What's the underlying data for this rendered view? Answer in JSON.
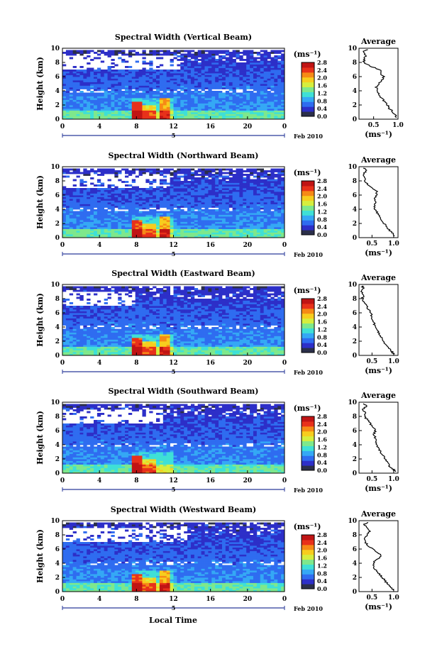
{
  "figure": {
    "xlabel_bottom": "Local Time",
    "colorbar_unit": "(ms⁻¹)",
    "date_label": "Feb 2010",
    "date_day": "5",
    "avg_title": "Average",
    "avg_xlabel": "(ms⁻¹)",
    "ylabel": "Height (km)"
  },
  "colors": {
    "colormap": [
      "#2b2f4a",
      "#2d2fc8",
      "#2f6cf0",
      "#35a8f5",
      "#3fe0d6",
      "#7ee88c",
      "#d6ee3e",
      "#f7cd1e",
      "#f68a16",
      "#e8311a",
      "#c01414"
    ]
  },
  "chart_data": [
    {
      "type": "heatmap",
      "title": "Spectral Width (Vertical Beam)",
      "xlim": [
        0,
        24
      ],
      "ylim": [
        0,
        10
      ],
      "xticks": [
        "0",
        "4",
        "8",
        "12",
        "16",
        "20",
        "0"
      ],
      "yticks": [
        "0",
        "2",
        "4",
        "6",
        "8",
        "10"
      ],
      "colorbar_ticks": [
        "0.0",
        "0.4",
        "0.8",
        "1.2",
        "1.6",
        "2.0",
        "2.4",
        "2.8"
      ],
      "clim": [
        0,
        2.8
      ],
      "avg": {
        "xticks": [
          "0.5",
          "1.0"
        ],
        "xlim": [
          0.2,
          1.0
        ],
        "profile": [
          [
            0.97,
            0.2
          ],
          [
            0.95,
            0.5
          ],
          [
            0.9,
            1.0
          ],
          [
            0.82,
            1.5
          ],
          [
            0.78,
            2.0
          ],
          [
            0.72,
            2.5
          ],
          [
            0.66,
            3.0
          ],
          [
            0.62,
            3.5
          ],
          [
            0.58,
            4.0
          ],
          [
            0.55,
            4.5
          ],
          [
            0.6,
            5.0
          ],
          [
            0.67,
            5.5
          ],
          [
            0.7,
            6.0
          ],
          [
            0.65,
            6.5
          ],
          [
            0.62,
            7.0
          ],
          [
            0.42,
            7.5
          ],
          [
            0.3,
            8.0
          ],
          [
            0.3,
            8.5
          ],
          [
            0.35,
            9.0
          ],
          [
            0.28,
            9.5
          ],
          [
            0.38,
            9.8
          ]
        ]
      }
    },
    {
      "type": "heatmap",
      "title": "Spectral Width (Northward Beam)",
      "xlim": [
        0,
        24
      ],
      "ylim": [
        0,
        10
      ],
      "xticks": [
        "0",
        "4",
        "8",
        "12",
        "16",
        "20",
        "0"
      ],
      "yticks": [
        "0",
        "2",
        "4",
        "6",
        "8",
        "10"
      ],
      "colorbar_ticks": [
        "0.0",
        "0.4",
        "0.8",
        "1.2",
        "1.6",
        "2.0",
        "2.4",
        "2.8"
      ],
      "clim": [
        0,
        2.8
      ],
      "avg": {
        "xticks": [
          "0.5",
          "1.0"
        ],
        "xlim": [
          0.2,
          1.1
        ],
        "profile": [
          [
            1.02,
            0.2
          ],
          [
            0.98,
            0.6
          ],
          [
            0.9,
            1.0
          ],
          [
            0.85,
            1.5
          ],
          [
            0.78,
            2.0
          ],
          [
            0.73,
            2.5
          ],
          [
            0.68,
            3.0
          ],
          [
            0.62,
            3.5
          ],
          [
            0.58,
            4.0
          ],
          [
            0.55,
            4.5
          ],
          [
            0.6,
            5.0
          ],
          [
            0.55,
            5.5
          ],
          [
            0.6,
            6.0
          ],
          [
            0.62,
            6.5
          ],
          [
            0.5,
            7.0
          ],
          [
            0.4,
            7.5
          ],
          [
            0.32,
            8.0
          ],
          [
            0.33,
            8.5
          ],
          [
            0.3,
            9.0
          ],
          [
            0.38,
            9.5
          ],
          [
            0.3,
            9.8
          ]
        ]
      }
    },
    {
      "type": "heatmap",
      "title": "Spectral Width (Eastward Beam)",
      "xlim": [
        0,
        24
      ],
      "ylim": [
        0,
        10
      ],
      "xticks": [
        "0",
        "4",
        "8",
        "12",
        "16",
        "20",
        "0"
      ],
      "yticks": [
        "0",
        "2",
        "4",
        "6",
        "8",
        "10"
      ],
      "colorbar_ticks": [
        "0.0",
        "0.4",
        "0.8",
        "1.2",
        "1.6",
        "2.0",
        "2.4",
        "2.8"
      ],
      "clim": [
        0,
        2.8
      ],
      "avg": {
        "xticks": [
          "0.5",
          "1.0"
        ],
        "xlim": [
          0.2,
          1.1
        ],
        "profile": [
          [
            1.0,
            0.2
          ],
          [
            0.95,
            0.6
          ],
          [
            0.88,
            1.0
          ],
          [
            0.82,
            1.5
          ],
          [
            0.78,
            2.0
          ],
          [
            0.72,
            2.5
          ],
          [
            0.68,
            3.0
          ],
          [
            0.62,
            3.5
          ],
          [
            0.58,
            4.0
          ],
          [
            0.55,
            4.5
          ],
          [
            0.52,
            5.0
          ],
          [
            0.5,
            5.5
          ],
          [
            0.46,
            6.0
          ],
          [
            0.42,
            6.5
          ],
          [
            0.38,
            7.0
          ],
          [
            0.33,
            7.5
          ],
          [
            0.28,
            8.0
          ],
          [
            0.3,
            8.5
          ],
          [
            0.26,
            9.0
          ],
          [
            0.3,
            9.5
          ],
          [
            0.27,
            9.8
          ]
        ]
      }
    },
    {
      "type": "heatmap",
      "title": "Spectral Width (Southward Beam)",
      "xlim": [
        0,
        24
      ],
      "ylim": [
        0,
        10
      ],
      "xticks": [
        "0",
        "4",
        "8",
        "12",
        "16",
        "20",
        "0"
      ],
      "yticks": [
        "0",
        "2",
        "4",
        "6",
        "8",
        "10"
      ],
      "colorbar_ticks": [
        "0.0",
        "0.4",
        "0.8",
        "1.2",
        "1.6",
        "2.0",
        "2.4",
        "2.8"
      ],
      "clim": [
        0,
        2.8
      ],
      "avg": {
        "xticks": [
          "0.5",
          "1.0"
        ],
        "xlim": [
          0.2,
          1.1
        ],
        "profile": [
          [
            1.05,
            0.2
          ],
          [
            0.98,
            0.6
          ],
          [
            0.9,
            1.0
          ],
          [
            0.85,
            1.5
          ],
          [
            0.8,
            2.0
          ],
          [
            0.75,
            2.5
          ],
          [
            0.7,
            3.0
          ],
          [
            0.65,
            3.5
          ],
          [
            0.62,
            4.0
          ],
          [
            0.6,
            4.5
          ],
          [
            0.57,
            5.0
          ],
          [
            0.54,
            5.5
          ],
          [
            0.58,
            6.0
          ],
          [
            0.52,
            6.5
          ],
          [
            0.46,
            7.0
          ],
          [
            0.4,
            7.5
          ],
          [
            0.32,
            8.0
          ],
          [
            0.35,
            8.5
          ],
          [
            0.3,
            9.0
          ],
          [
            0.38,
            9.5
          ],
          [
            0.3,
            9.8
          ]
        ]
      }
    },
    {
      "type": "heatmap",
      "title": "Spectral Width (Westward Beam)",
      "xlim": [
        0,
        24
      ],
      "ylim": [
        0,
        10
      ],
      "xticks": [
        "0",
        "4",
        "8",
        "12",
        "16",
        "20",
        "0"
      ],
      "yticks": [
        "0",
        "2",
        "4",
        "6",
        "8",
        "10"
      ],
      "colorbar_ticks": [
        "0.0",
        "0.4",
        "0.8",
        "1.2",
        "1.6",
        "2.0",
        "2.4",
        "2.8"
      ],
      "clim": [
        0,
        2.8
      ],
      "avg": {
        "xticks": [
          "0.5",
          "1.0"
        ],
        "xlim": [
          0.2,
          1.1
        ],
        "profile": [
          [
            0.98,
            0.2
          ],
          [
            0.94,
            0.6
          ],
          [
            0.88,
            1.0
          ],
          [
            0.8,
            1.5
          ],
          [
            0.74,
            2.0
          ],
          [
            0.66,
            2.5
          ],
          [
            0.6,
            3.0
          ],
          [
            0.54,
            3.5
          ],
          [
            0.52,
            4.0
          ],
          [
            0.6,
            4.5
          ],
          [
            0.72,
            5.0
          ],
          [
            0.64,
            5.5
          ],
          [
            0.52,
            6.0
          ],
          [
            0.4,
            6.5
          ],
          [
            0.35,
            7.0
          ],
          [
            0.32,
            7.5
          ],
          [
            0.38,
            8.0
          ],
          [
            0.45,
            8.5
          ],
          [
            0.4,
            9.0
          ],
          [
            0.32,
            9.5
          ],
          [
            0.4,
            9.8
          ]
        ]
      }
    }
  ]
}
